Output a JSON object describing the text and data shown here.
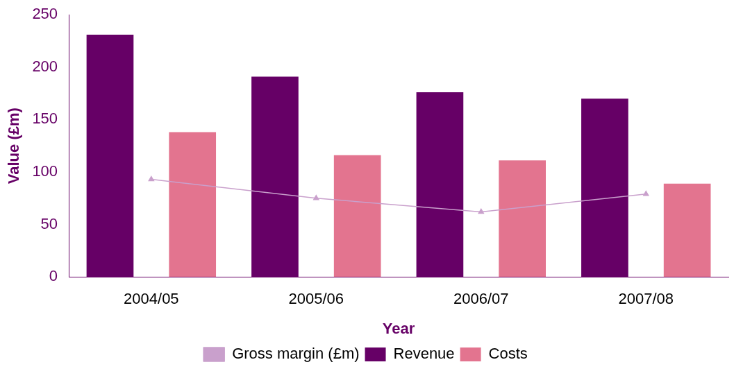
{
  "chart_data": {
    "type": "bar",
    "xlabel": "Year",
    "ylabel": "Value (£m)",
    "categories": [
      "2004/05",
      "2005/06",
      "2006/07",
      "2007/08"
    ],
    "series": [
      {
        "name": "Revenue",
        "color": "#660066",
        "values": [
          231,
          191,
          176,
          170
        ]
      },
      {
        "name": "Costs",
        "color": "#e3748f",
        "values": [
          138,
          116,
          111,
          89
        ]
      },
      {
        "name": "Gross margin (£m)",
        "type": "line",
        "color": "#c9a0cc",
        "values": [
          93,
          75,
          62,
          79
        ],
        "marker": "triangle"
      }
    ],
    "ylim": [
      0,
      250
    ],
    "yticks": [
      0,
      50,
      100,
      150,
      200,
      250
    ],
    "grid": false,
    "legend": "bottom"
  }
}
